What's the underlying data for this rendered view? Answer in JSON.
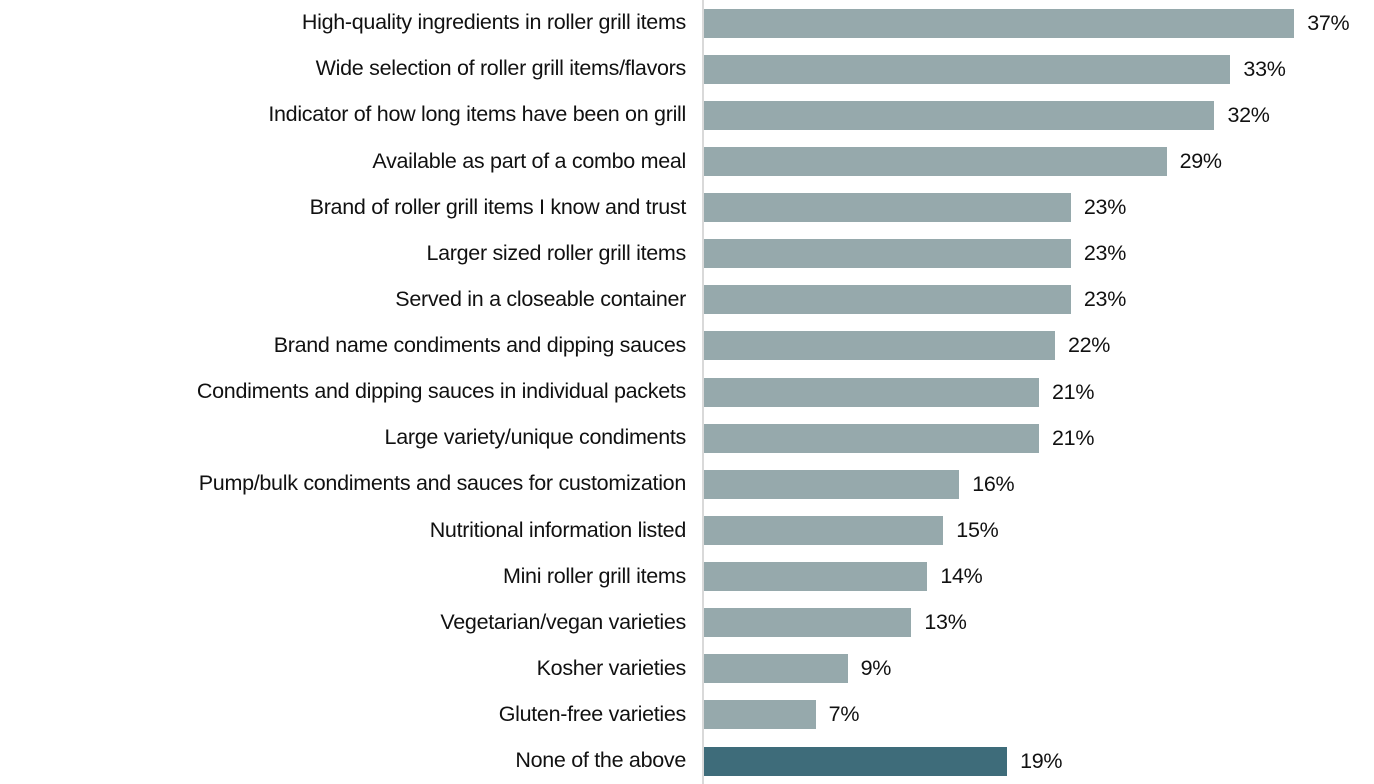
{
  "chart_data": {
    "type": "bar",
    "orientation": "horizontal",
    "title": "",
    "xlabel": "",
    "ylabel": "",
    "categories": [
      "High-quality ingredients in roller grill items",
      "Wide selection of roller grill items/flavors",
      "Indicator of how long items have been on grill",
      "Available as part of a combo meal",
      "Brand of roller grill items I know and trust",
      "Larger sized roller grill items",
      "Served in a closeable container",
      "Brand name condiments and dipping sauces",
      "Condiments and dipping sauces in individual packets",
      "Large variety/unique condiments",
      "Pump/bulk condiments and sauces for customization",
      "Nutritional information listed",
      "Mini roller grill items",
      "Vegetarian/vegan varieties",
      "Kosher varieties",
      "Gluten-free varieties",
      "None of the above"
    ],
    "values": [
      37,
      33,
      32,
      29,
      23,
      23,
      23,
      22,
      21,
      21,
      16,
      15,
      14,
      13,
      9,
      7,
      19
    ],
    "value_labels": [
      "37%",
      "33%",
      "32%",
      "29%",
      "23%",
      "23%",
      "23%",
      "22%",
      "21%",
      "21%",
      "16%",
      "15%",
      "14%",
      "13%",
      "9%",
      "7%",
      "19%"
    ],
    "xlim": [
      0,
      42
    ],
    "grid": false,
    "legend": false,
    "bar_color": "#96a9ac",
    "highlight_color": "#3e6c7a",
    "highlight_index": 16,
    "axis_line_color": "#d9d9d9",
    "text_color": "#111111"
  }
}
